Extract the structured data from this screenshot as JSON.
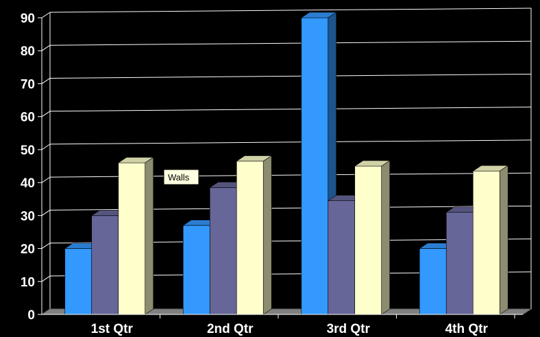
{
  "chart_data": {
    "type": "bar",
    "categories": [
      "1st Qtr",
      "2nd Qtr",
      "3rd Qtr",
      "4th Qtr"
    ],
    "series": [
      {
        "values": [
          20,
          27,
          90,
          20
        ],
        "color": "#3399ff"
      },
      {
        "values": [
          30,
          38.5,
          34.5,
          31
        ],
        "color": "#666699"
      },
      {
        "values": [
          46,
          46.5,
          45,
          43.5
        ],
        "color": "#ffffcc"
      }
    ],
    "ylim": [
      0,
      90
    ],
    "yticks": [
      0,
      10,
      20,
      30,
      40,
      50,
      60,
      70,
      80,
      90
    ],
    "grid": true,
    "three_d": true,
    "title": "",
    "xlabel": "",
    "ylabel": "",
    "background": "#000000",
    "gridline_color": "#ffffff"
  },
  "tooltip": {
    "text": "Walls"
  }
}
